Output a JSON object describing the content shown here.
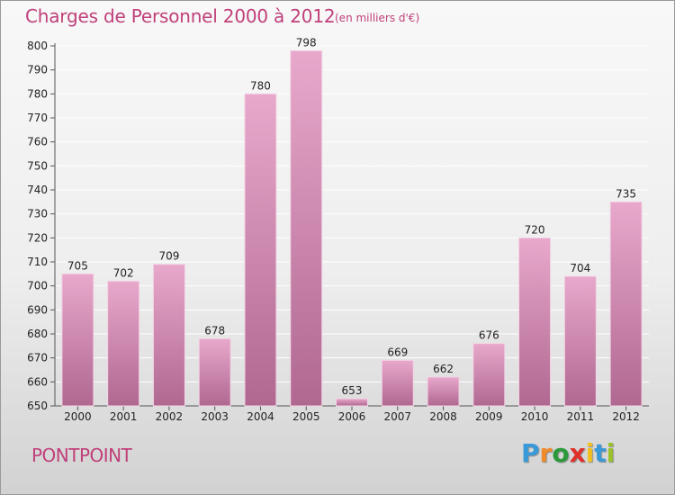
{
  "header": {
    "title": "Charges de Personnel 2000 à 2012",
    "unit": "(en milliers d'€)"
  },
  "footer": {
    "commune": "PONTPOINT",
    "logo_text": "Proxiti"
  },
  "colors": {
    "bar_top": "#e8a8cc",
    "bar_bottom": "#b06890",
    "title": "#c0407a",
    "logo_p": "#3a9ad8",
    "logo_r": "#f08a2a",
    "logo_o": "#2a9a3a",
    "logo_x": "#e0302a",
    "logo_i": "#f0c020",
    "logo_t": "#3a9ad8",
    "logo_i2": "#9ac02a"
  },
  "chart_data": {
    "type": "bar",
    "title": "Charges de Personnel 2000 à 2012",
    "subtitle": "(en milliers d'€)",
    "categories": [
      "2000",
      "2001",
      "2002",
      "2003",
      "2004",
      "2005",
      "2006",
      "2007",
      "2008",
      "2009",
      "2010",
      "2011",
      "2012"
    ],
    "values": [
      705,
      702,
      709,
      678,
      780,
      798,
      653,
      669,
      662,
      676,
      720,
      704,
      735
    ],
    "ylim": [
      650,
      800
    ],
    "yticks": [
      650,
      660,
      670,
      680,
      690,
      700,
      710,
      720,
      730,
      740,
      750,
      760,
      770,
      780,
      790,
      800
    ],
    "grid": true,
    "xlabel": "",
    "ylabel": ""
  }
}
